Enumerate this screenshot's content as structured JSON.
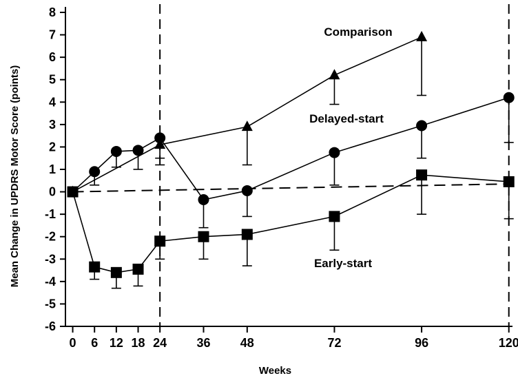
{
  "chart_data": {
    "type": "line",
    "xlabel": "Weeks",
    "ylabel": "Mean Change in UPDRS Motor Score (points)",
    "xlim": [
      -2,
      121
    ],
    "ylim": [
      -6,
      8
    ],
    "x_ticks": [
      0,
      6,
      12,
      18,
      24,
      36,
      48,
      72,
      96,
      120
    ],
    "y_ticks": [
      -6,
      -5,
      -4,
      -3,
      -2,
      -1,
      0,
      1,
      2,
      3,
      4,
      5,
      6,
      7,
      8
    ],
    "vertical_reference_lines": [
      24,
      120
    ],
    "grid": false,
    "legend": "none (direct labels)",
    "series": [
      {
        "name": "Comparison",
        "marker": "triangle",
        "x": [
          0,
          24,
          48,
          72,
          96
        ],
        "y": [
          0,
          2.1,
          2.9,
          5.2,
          6.9
        ],
        "error_low": [
          0,
          1.2,
          1.2,
          3.9,
          4.3
        ]
      },
      {
        "name": "Delayed-start",
        "marker": "circle",
        "x": [
          0,
          6,
          12,
          18,
          24,
          36,
          48,
          72,
          96,
          120
        ],
        "y": [
          0,
          0.9,
          1.8,
          1.85,
          2.4,
          -0.35,
          0.05,
          1.75,
          2.95,
          4.2
        ],
        "error_low": [
          0,
          0.3,
          1.1,
          1.0,
          1.5,
          -1.6,
          -1.1,
          0.3,
          1.5,
          2.2
        ]
      },
      {
        "name": "Early-start",
        "marker": "square",
        "x": [
          0,
          6,
          12,
          18,
          24,
          36,
          48,
          72,
          96,
          120
        ],
        "y": [
          0,
          -3.35,
          -3.6,
          -3.45,
          -2.2,
          -2.0,
          -1.9,
          -1.1,
          0.75,
          0.45
        ],
        "error_low": [
          0,
          -3.9,
          -4.3,
          -4.2,
          -3.0,
          -3.0,
          -3.3,
          -2.6,
          -1.0,
          -1.2
        ]
      }
    ],
    "reference_line": {
      "style": "dashed",
      "x": [
        0,
        120
      ],
      "y": [
        0,
        0.35
      ]
    }
  }
}
